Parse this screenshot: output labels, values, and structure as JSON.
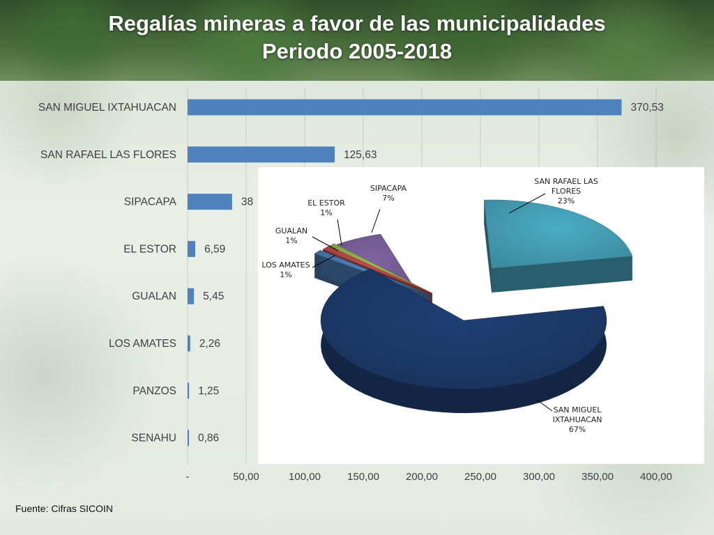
{
  "title": {
    "line1": "Regalías mineras a favor de las municipalidades",
    "line2": "Periodo 2005-2018"
  },
  "chart_data": [
    {
      "type": "bar",
      "orientation": "horizontal",
      "categories": [
        "SAN MIGUEL IXTAHUACAN",
        "SAN RAFAEL LAS FLORES",
        "SIPACAPA",
        "EL ESTOR",
        "GUALAN",
        "LOS AMATES",
        "PANZOS",
        "SENAHU"
      ],
      "values": [
        370.53,
        125.63,
        38,
        6.59,
        5.45,
        2.26,
        1.25,
        0.86
      ],
      "value_labels": [
        "370,53",
        "125,63",
        "38",
        "6,59",
        "5,45",
        "2,26",
        "1,25",
        "0,86"
      ],
      "x_ticks": [
        0,
        50,
        100,
        150,
        200,
        250,
        300,
        350,
        400
      ],
      "x_tick_labels": [
        "-",
        "50,00",
        "100,00",
        "150,00",
        "200,00",
        "250,00",
        "300,00",
        "350,00",
        "400,00"
      ],
      "xlim": [
        0,
        400
      ],
      "grid": true,
      "bar_color": "#4f81bd"
    },
    {
      "type": "pie",
      "style": "3d-exploded",
      "slices": [
        {
          "label": "SAN MIGUEL IXTAHUACAN",
          "percent_label": "67%",
          "value": 67,
          "color": "#1f3f73"
        },
        {
          "label": "SAN RAFAEL LAS FLORES",
          "percent_label": "23%",
          "value": 23,
          "color": "#4bacc6"
        },
        {
          "label": "SIPACAPA",
          "percent_label": "7%",
          "value": 7,
          "color": "#8064a2"
        },
        {
          "label": "EL ESTOR",
          "percent_label": "1%",
          "value": 1,
          "color": "#9bbb59"
        },
        {
          "label": "GUALAN",
          "percent_label": "1%",
          "value": 1,
          "color": "#c0504d"
        },
        {
          "label": "LOS AMATES",
          "percent_label": "1%",
          "value": 1,
          "color": "#4f81bd"
        }
      ]
    }
  ],
  "source": "Fuente: Cifras SICOIN"
}
